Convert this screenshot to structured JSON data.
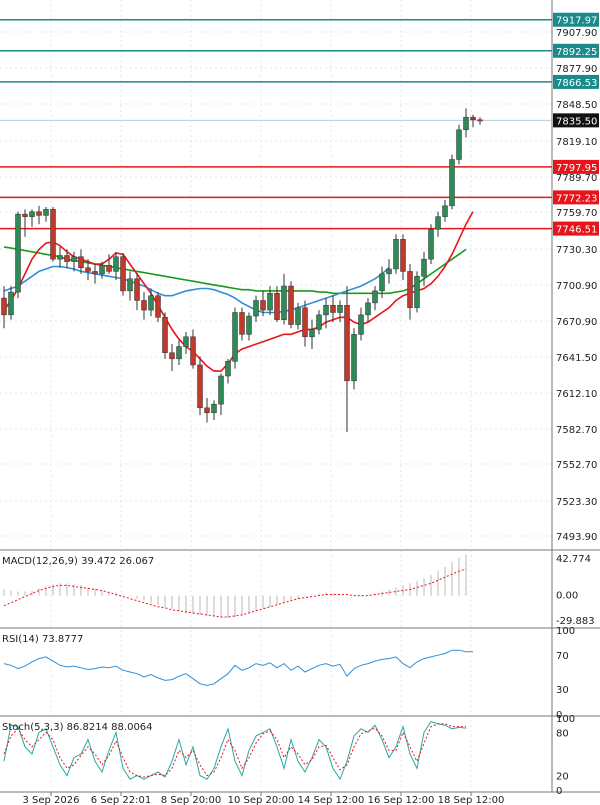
{
  "colors": {
    "bull": "#2e8b57",
    "bear": "#c0392b",
    "ma_fast": "#e8141b",
    "ma_mid": "#2f8fd8",
    "ma_slow": "#1a9a1a",
    "resistance": "#1a8a8a",
    "support": "#e8141b",
    "grid": "#dfe7f0",
    "current": "#111111"
  },
  "chart_data": [
    {
      "type": "candlestick",
      "panel": "price",
      "ylim": [
        7480,
        7930
      ],
      "yticks": [
        "7907.90",
        "7877.90",
        "7848.50",
        "7819.10",
        "7789.70",
        "7759.70",
        "7730.30",
        "7700.90",
        "7670.90",
        "7641.50",
        "7612.10",
        "7582.70",
        "7552.70",
        "7523.30",
        "7493.90"
      ],
      "xticks": [
        {
          "label": "3 Sep 2026",
          "x": 3
        },
        {
          "label": "6 Sep 22:01",
          "x": 13
        },
        {
          "label": "8 Sep 20:00",
          "x": 23
        },
        {
          "label": "10 Sep 20:00",
          "x": 33
        },
        {
          "label": "14 Sep 12:00",
          "x": 43
        },
        {
          "label": "16 Sep 12:00",
          "x": 53
        },
        {
          "label": "18 Sep 12:00",
          "x": 63
        }
      ],
      "candles": [
        {
          "o": 7690,
          "h": 7700,
          "l": 7665,
          "c": 7676
        },
        {
          "o": 7676,
          "h": 7700,
          "l": 7672,
          "c": 7695
        },
        {
          "o": 7695,
          "h": 7760,
          "l": 7690,
          "c": 7758
        },
        {
          "o": 7758,
          "h": 7762,
          "l": 7740,
          "c": 7756
        },
        {
          "o": 7756,
          "h": 7762,
          "l": 7748,
          "c": 7760
        },
        {
          "o": 7760,
          "h": 7765,
          "l": 7750,
          "c": 7757
        },
        {
          "o": 7757,
          "h": 7764,
          "l": 7752,
          "c": 7762
        },
        {
          "o": 7762,
          "h": 7764,
          "l": 7720,
          "c": 7722
        },
        {
          "o": 7722,
          "h": 7732,
          "l": 7715,
          "c": 7725
        },
        {
          "o": 7725,
          "h": 7730,
          "l": 7715,
          "c": 7720
        },
        {
          "o": 7720,
          "h": 7728,
          "l": 7712,
          "c": 7724
        },
        {
          "o": 7724,
          "h": 7730,
          "l": 7710,
          "c": 7715
        },
        {
          "o": 7715,
          "h": 7722,
          "l": 7705,
          "c": 7712
        },
        {
          "o": 7712,
          "h": 7718,
          "l": 7702,
          "c": 7710
        },
        {
          "o": 7710,
          "h": 7720,
          "l": 7706,
          "c": 7717
        },
        {
          "o": 7717,
          "h": 7726,
          "l": 7710,
          "c": 7712
        },
        {
          "o": 7712,
          "h": 7728,
          "l": 7705,
          "c": 7724
        },
        {
          "o": 7724,
          "h": 7727,
          "l": 7692,
          "c": 7696
        },
        {
          "o": 7696,
          "h": 7712,
          "l": 7688,
          "c": 7706
        },
        {
          "o": 7706,
          "h": 7710,
          "l": 7680,
          "c": 7688
        },
        {
          "o": 7688,
          "h": 7695,
          "l": 7672,
          "c": 7680
        },
        {
          "o": 7680,
          "h": 7698,
          "l": 7675,
          "c": 7692
        },
        {
          "o": 7692,
          "h": 7695,
          "l": 7670,
          "c": 7674
        },
        {
          "o": 7674,
          "h": 7678,
          "l": 7640,
          "c": 7645
        },
        {
          "o": 7645,
          "h": 7652,
          "l": 7630,
          "c": 7640
        },
        {
          "o": 7640,
          "h": 7655,
          "l": 7635,
          "c": 7650
        },
        {
          "o": 7650,
          "h": 7662,
          "l": 7644,
          "c": 7658
        },
        {
          "o": 7658,
          "h": 7664,
          "l": 7632,
          "c": 7635
        },
        {
          "o": 7635,
          "h": 7642,
          "l": 7594,
          "c": 7600
        },
        {
          "o": 7600,
          "h": 7608,
          "l": 7588,
          "c": 7596
        },
        {
          "o": 7596,
          "h": 7606,
          "l": 7590,
          "c": 7603
        },
        {
          "o": 7603,
          "h": 7628,
          "l": 7594,
          "c": 7626
        },
        {
          "o": 7626,
          "h": 7640,
          "l": 7620,
          "c": 7638
        },
        {
          "o": 7638,
          "h": 7682,
          "l": 7632,
          "c": 7678
        },
        {
          "o": 7678,
          "h": 7682,
          "l": 7655,
          "c": 7660
        },
        {
          "o": 7660,
          "h": 7678,
          "l": 7655,
          "c": 7675
        },
        {
          "o": 7675,
          "h": 7692,
          "l": 7670,
          "c": 7688
        },
        {
          "o": 7688,
          "h": 7696,
          "l": 7675,
          "c": 7680
        },
        {
          "o": 7680,
          "h": 7700,
          "l": 7676,
          "c": 7694
        },
        {
          "o": 7694,
          "h": 7700,
          "l": 7670,
          "c": 7672
        },
        {
          "o": 7672,
          "h": 7710,
          "l": 7668,
          "c": 7700
        },
        {
          "o": 7700,
          "h": 7704,
          "l": 7665,
          "c": 7668
        },
        {
          "o": 7668,
          "h": 7686,
          "l": 7664,
          "c": 7682
        },
        {
          "o": 7682,
          "h": 7688,
          "l": 7650,
          "c": 7658
        },
        {
          "o": 7658,
          "h": 7672,
          "l": 7648,
          "c": 7664
        },
        {
          "o": 7664,
          "h": 7680,
          "l": 7660,
          "c": 7676
        },
        {
          "o": 7676,
          "h": 7690,
          "l": 7665,
          "c": 7684
        },
        {
          "o": 7684,
          "h": 7692,
          "l": 7670,
          "c": 7678
        },
        {
          "o": 7678,
          "h": 7688,
          "l": 7670,
          "c": 7684
        },
        {
          "o": 7684,
          "h": 7700,
          "l": 7580,
          "c": 7622
        },
        {
          "o": 7622,
          "h": 7665,
          "l": 7615,
          "c": 7660
        },
        {
          "o": 7660,
          "h": 7682,
          "l": 7655,
          "c": 7676
        },
        {
          "o": 7676,
          "h": 7690,
          "l": 7670,
          "c": 7686
        },
        {
          "o": 7686,
          "h": 7700,
          "l": 7680,
          "c": 7696
        },
        {
          "o": 7696,
          "h": 7716,
          "l": 7690,
          "c": 7710
        },
        {
          "o": 7710,
          "h": 7722,
          "l": 7702,
          "c": 7714
        },
        {
          "o": 7714,
          "h": 7742,
          "l": 7710,
          "c": 7738
        },
        {
          "o": 7738,
          "h": 7742,
          "l": 7705,
          "c": 7712
        },
        {
          "o": 7712,
          "h": 7718,
          "l": 7672,
          "c": 7682
        },
        {
          "o": 7682,
          "h": 7712,
          "l": 7678,
          "c": 7708
        },
        {
          "o": 7708,
          "h": 7728,
          "l": 7700,
          "c": 7722
        },
        {
          "o": 7722,
          "h": 7750,
          "l": 7718,
          "c": 7746
        },
        {
          "o": 7746,
          "h": 7760,
          "l": 7740,
          "c": 7756
        },
        {
          "o": 7756,
          "h": 7770,
          "l": 7752,
          "c": 7765
        },
        {
          "o": 7765,
          "h": 7808,
          "l": 7762,
          "c": 7804
        },
        {
          "o": 7804,
          "h": 7832,
          "l": 7800,
          "c": 7828
        },
        {
          "o": 7828,
          "h": 7845,
          "l": 7822,
          "c": 7838
        },
        {
          "o": 7838,
          "h": 7840,
          "l": 7830,
          "c": 7836
        },
        {
          "o": 7836,
          "h": 7838,
          "l": 7832,
          "c": 7835
        }
      ],
      "ma_fast": [
        7680,
        7688,
        7698,
        7710,
        7722,
        7730,
        7735,
        7736,
        7733,
        7728,
        7724,
        7722,
        7720,
        7718,
        7718,
        7722,
        7727,
        7726,
        7718,
        7710,
        7702,
        7694,
        7684,
        7674,
        7664,
        7656,
        7650,
        7646,
        7640,
        7634,
        7630,
        7630,
        7636,
        7644,
        7648,
        7650,
        7652,
        7654,
        7656,
        7658,
        7660,
        7660,
        7662,
        7664,
        7664,
        7666,
        7670,
        7672,
        7674,
        7674,
        7670,
        7668,
        7670,
        7674,
        7678,
        7682,
        7688,
        7692,
        7694,
        7696,
        7698,
        7702,
        7708,
        7716,
        7726,
        7738,
        7750,
        7760
      ],
      "ma_mid": [
        7696,
        7698,
        7700,
        7704,
        7708,
        7712,
        7714,
        7716,
        7716,
        7715,
        7714,
        7712,
        7711,
        7710,
        7709,
        7708,
        7707,
        7706,
        7704,
        7702,
        7700,
        7697,
        7694,
        7692,
        7692,
        7694,
        7696,
        7697,
        7698,
        7698,
        7697,
        7695,
        7693,
        7690,
        7686,
        7683,
        7680,
        7678,
        7678,
        7678,
        7679,
        7680,
        7682,
        7684,
        7686,
        7688,
        7690,
        7692,
        7694,
        7696,
        7698,
        7700,
        7703,
        7706,
        7710,
        7715
      ],
      "ma_slow": [
        7732,
        7731,
        7730,
        7729,
        7728,
        7727,
        7726,
        7725,
        7724,
        7722,
        7721,
        7720,
        7719,
        7718,
        7717,
        7716,
        7715,
        7714,
        7713,
        7712,
        7711,
        7710,
        7709,
        7708,
        7707,
        7706,
        7705,
        7704,
        7703,
        7702,
        7701,
        7700,
        7699,
        7698,
        7697,
        7697,
        7696,
        7696,
        7696,
        7696,
        7696,
        7696,
        7696,
        7696,
        7696,
        7695,
        7695,
        7694,
        7694,
        7694,
        7694,
        7694,
        7694,
        7694,
        7694,
        7694,
        7695,
        7696,
        7698,
        7702,
        7706,
        7710,
        7714,
        7718,
        7722,
        7726,
        7730
      ],
      "levels": {
        "resistance": [
          {
            "value": 7917.97,
            "label": "7917.97"
          },
          {
            "value": 7892.25,
            "label": "7892.25"
          },
          {
            "value": 7866.53,
            "label": "7866.53"
          }
        ],
        "support": [
          {
            "value": 7797.95,
            "label": "7797.95"
          },
          {
            "value": 7772.23,
            "label": "7772.23"
          },
          {
            "value": 7746.51,
            "label": "7746.51"
          }
        ],
        "current": {
          "value": 7835.5,
          "label": "7835.50"
        }
      }
    },
    {
      "type": "bar",
      "panel": "macd",
      "label": "MACD(12,26,9) 39.472 26.067",
      "yticks": [
        "42.774",
        "0.00",
        "-29.883"
      ],
      "ylim": [
        -29.883,
        42.774
      ],
      "histogram": [
        6,
        5,
        4,
        4,
        5,
        7,
        9,
        11,
        12,
        12,
        11,
        10,
        8,
        7,
        5,
        4,
        3,
        1,
        -1,
        -3,
        -5,
        -7,
        -9,
        -11,
        -13,
        -15,
        -17,
        -18,
        -19,
        -20,
        -21,
        -22,
        -22,
        -21,
        -19,
        -17,
        -15,
        -13,
        -11,
        -9,
        -7,
        -5,
        -3,
        -1,
        1,
        2,
        3,
        2,
        1,
        0,
        -1,
        -1,
        0,
        2,
        4,
        6,
        8,
        10,
        12,
        14,
        17,
        20,
        24,
        28,
        33,
        37,
        40
      ],
      "signal": [
        -10,
        -7,
        -4,
        -1,
        2,
        5,
        7,
        9,
        10,
        10,
        9,
        8,
        7,
        6,
        5,
        3,
        1,
        -1,
        -3,
        -5,
        -7,
        -9,
        -11,
        -12,
        -14,
        -15,
        -16,
        -17,
        -18,
        -19,
        -20,
        -21,
        -21,
        -20,
        -19,
        -17,
        -15,
        -13,
        -11,
        -9,
        -7,
        -5,
        -3,
        -2,
        -1,
        0,
        1,
        1,
        1,
        1,
        0,
        0,
        0,
        1,
        2,
        3,
        4,
        5,
        6,
        8,
        10,
        12,
        15,
        18,
        21,
        24,
        26
      ]
    },
    {
      "type": "line",
      "panel": "rsi",
      "label": "RSI(14) 73.8777",
      "yticks": [
        "100",
        "70",
        "30",
        "0"
      ],
      "ylim": [
        0,
        100
      ],
      "values": [
        60,
        58,
        54,
        57,
        62,
        66,
        68,
        63,
        58,
        56,
        57,
        55,
        53,
        54,
        56,
        55,
        57,
        52,
        50,
        48,
        44,
        47,
        43,
        40,
        41,
        45,
        48,
        42,
        36,
        34,
        36,
        42,
        48,
        58,
        52,
        55,
        60,
        58,
        61,
        55,
        60,
        52,
        57,
        50,
        54,
        58,
        60,
        57,
        59,
        45,
        54,
        58,
        60,
        63,
        65,
        66,
        68,
        60,
        55,
        62,
        66,
        68,
        70,
        72,
        76,
        76,
        74,
        74
      ]
    },
    {
      "type": "line",
      "panel": "stoch",
      "label": "Stoch(5,3,3) 86.8214 88.0064",
      "yticks": [
        "100",
        "80",
        "20",
        "0"
      ],
      "ylim": [
        0,
        100
      ],
      "k": [
        40,
        90,
        88,
        60,
        50,
        80,
        85,
        60,
        35,
        20,
        45,
        50,
        70,
        40,
        25,
        55,
        80,
        30,
        15,
        20,
        15,
        20,
        25,
        18,
        40,
        70,
        35,
        60,
        20,
        15,
        30,
        60,
        85,
        40,
        20,
        55,
        75,
        80,
        85,
        60,
        30,
        70,
        40,
        25,
        45,
        70,
        60,
        30,
        15,
        40,
        75,
        85,
        80,
        90,
        70,
        45,
        60,
        88,
        50,
        30,
        80,
        95,
        92,
        90,
        85,
        87,
        86
      ],
      "d": [
        50,
        75,
        85,
        70,
        60,
        70,
        80,
        70,
        45,
        30,
        35,
        48,
        60,
        50,
        35,
        48,
        68,
        45,
        25,
        20,
        18,
        20,
        22,
        20,
        30,
        55,
        45,
        55,
        35,
        20,
        25,
        45,
        70,
        55,
        30,
        45,
        65,
        78,
        82,
        70,
        45,
        60,
        50,
        35,
        42,
        60,
        62,
        45,
        28,
        35,
        60,
        78,
        82,
        86,
        75,
        55,
        55,
        80,
        60,
        40,
        65,
        88,
        92,
        92,
        88,
        88,
        88
      ]
    }
  ]
}
